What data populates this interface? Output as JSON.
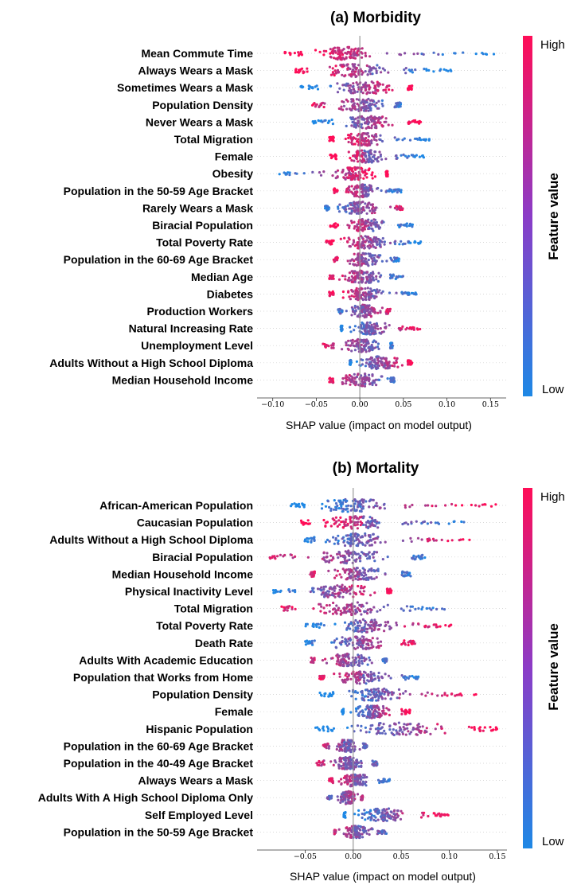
{
  "colors": {
    "low": "#1e88e5",
    "high": "#ff0d57"
  },
  "chart_data": [
    {
      "type": "scatter",
      "title": "(a) Morbidity",
      "xlabel": "SHAP value (impact on model output)",
      "xlim": [
        -0.118,
        0.168
      ],
      "xticks": [
        -0.1,
        -0.05,
        0.0,
        0.05,
        0.1,
        0.15
      ],
      "xtick_labels": [
        "−0.10",
        "−0.05",
        "0.00",
        "0.05",
        "0.10",
        "0.15"
      ],
      "colorbar": {
        "high": "High",
        "low": "Low",
        "label": "Feature value"
      },
      "features": [
        {
          "name": "Mean Commute Time",
          "min": -0.088,
          "max": 0.155,
          "core": [
            -0.065,
            0.03
          ],
          "max_high": 0.07,
          "skew": 0.8
        },
        {
          "name": "Always Wears a Mask",
          "min": -0.075,
          "max": 0.105,
          "core": [
            -0.06,
            0.05
          ],
          "max_high": 0.01,
          "skew": 0.8
        },
        {
          "name": "Sometimes Wears a Mask",
          "min": -0.07,
          "max": 0.06,
          "core": [
            -0.045,
            0.055
          ],
          "max_high": 0.06,
          "skew": -0.8
        },
        {
          "name": "Population Density",
          "min": -0.055,
          "max": 0.047,
          "core": [
            -0.04,
            0.04
          ],
          "max_high": 0.01,
          "skew": 0.5
        },
        {
          "name": "Never Wears a Mask",
          "min": -0.055,
          "max": 0.07,
          "core": [
            -0.03,
            0.05
          ],
          "max_high": 0.07,
          "skew": -0.8
        },
        {
          "name": "Total Migration",
          "min": -0.035,
          "max": 0.083,
          "core": [
            -0.03,
            0.04
          ],
          "max_high": 0.02,
          "skew": 0.8
        },
        {
          "name": "Female",
          "min": -0.035,
          "max": 0.075,
          "core": [
            -0.025,
            0.04
          ],
          "max_high": 0.005,
          "skew": 0.8
        },
        {
          "name": "Obesity",
          "min": -0.103,
          "max": 0.032,
          "core": [
            -0.04,
            0.03
          ],
          "max_high": 0.032,
          "skew": -0.8
        },
        {
          "name": "Population in the 50-59 Age Bracket",
          "min": -0.03,
          "max": 0.048,
          "core": [
            -0.025,
            0.03
          ],
          "max_high": 0.005,
          "skew": 0.6
        },
        {
          "name": "Rarely Wears a Mask",
          "min": -0.04,
          "max": 0.05,
          "core": [
            -0.035,
            0.035
          ],
          "max_high": 0.05,
          "skew": -0.5
        },
        {
          "name": "Biracial Population",
          "min": -0.035,
          "max": 0.067,
          "core": [
            -0.025,
            0.04
          ],
          "max_high": 0.01,
          "skew": 0.7
        },
        {
          "name": "Total Poverty Rate",
          "min": -0.04,
          "max": 0.072,
          "core": [
            -0.03,
            0.04
          ],
          "max_high": 0.072,
          "skew": 0.7
        },
        {
          "name": "Population in the 60-69 Age Bracket",
          "min": -0.03,
          "max": 0.045,
          "core": [
            -0.025,
            0.035
          ],
          "max_high": 0.01,
          "skew": 0.5
        },
        {
          "name": "Median Age",
          "min": -0.035,
          "max": 0.05,
          "core": [
            -0.03,
            0.035
          ],
          "max_high": 0.01,
          "skew": 0.5
        },
        {
          "name": "Diabetes",
          "min": -0.035,
          "max": 0.065,
          "core": [
            -0.03,
            0.04
          ],
          "max_high": 0.01,
          "skew": 0.6
        },
        {
          "name": "Production Workers",
          "min": -0.025,
          "max": 0.035,
          "core": [
            -0.02,
            0.03
          ],
          "max_high": 0.035,
          "skew": -0.4
        },
        {
          "name": "Natural Increasing Rate",
          "min": -0.022,
          "max": 0.07,
          "core": [
            -0.02,
            0.045
          ],
          "max_high": 0.07,
          "skew": -0.7
        },
        {
          "name": "Unemployment Level",
          "min": -0.043,
          "max": 0.038,
          "core": [
            -0.03,
            0.035
          ],
          "max_high": 0.01,
          "skew": 0.5
        },
        {
          "name": "Adults Without a High School Diploma",
          "min": -0.012,
          "max": 0.06,
          "core": [
            -0.01,
            0.055
          ],
          "max_high": 0.06,
          "skew": -0.6
        },
        {
          "name": "Median Household Income",
          "min": -0.035,
          "max": 0.04,
          "core": [
            -0.03,
            0.035
          ],
          "max_high": 0.01,
          "skew": 0.5
        }
      ]
    },
    {
      "type": "scatter",
      "title": "(b) Mortality",
      "xlabel": "SHAP value (impact on model output)",
      "xlim": [
        -0.1,
        0.16
      ],
      "xticks": [
        -0.05,
        0.0,
        0.05,
        0.1,
        0.15
      ],
      "xtick_labels": [
        "−0.05",
        "0.00",
        "0.05",
        "0.10",
        "0.15"
      ],
      "colorbar": {
        "high": "High",
        "low": "Low",
        "label": "Feature value"
      },
      "features": [
        {
          "name": "African-American Population",
          "min": -0.065,
          "max": 0.15,
          "core": [
            -0.05,
            0.05
          ],
          "max_high": 0.15,
          "skew": -0.8
        },
        {
          "name": "Caucasian Population",
          "min": -0.055,
          "max": 0.135,
          "core": [
            -0.045,
            0.05
          ],
          "max_high": 0.01,
          "skew": 0.8
        },
        {
          "name": "Adults Without a High School Diploma",
          "min": -0.055,
          "max": 0.125,
          "core": [
            -0.04,
            0.05
          ],
          "max_high": 0.125,
          "skew": -0.7
        },
        {
          "name": "Biracial Population",
          "min": -0.09,
          "max": 0.075,
          "core": [
            -0.06,
            0.06
          ],
          "max_high": 0.0,
          "skew": 0.5
        },
        {
          "name": "Median Household Income",
          "min": -0.045,
          "max": 0.06,
          "core": [
            -0.04,
            0.05
          ],
          "max_high": 0.01,
          "skew": 0.5
        },
        {
          "name": "Physical Inactivity Level",
          "min": -0.085,
          "max": 0.04,
          "core": [
            -0.06,
            0.035
          ],
          "max_high": 0.04,
          "skew": -0.7
        },
        {
          "name": "Total Migration",
          "min": -0.075,
          "max": 0.095,
          "core": [
            -0.06,
            0.05
          ],
          "max_high": 0.02,
          "skew": 0.5
        },
        {
          "name": "Total Poverty Rate",
          "min": -0.05,
          "max": 0.105,
          "core": [
            -0.03,
            0.06
          ],
          "max_high": 0.105,
          "skew": -0.7
        },
        {
          "name": "Death Rate",
          "min": -0.05,
          "max": 0.065,
          "core": [
            -0.04,
            0.05
          ],
          "max_high": 0.065,
          "skew": -0.6
        },
        {
          "name": "Adults With Academic Education",
          "min": -0.045,
          "max": 0.035,
          "core": [
            -0.04,
            0.03
          ],
          "max_high": 0.005,
          "skew": 0.4
        },
        {
          "name": "Population that Works from Home",
          "min": -0.035,
          "max": 0.07,
          "core": [
            -0.03,
            0.05
          ],
          "max_high": 0.01,
          "skew": 0.6
        },
        {
          "name": "Population Density",
          "min": -0.035,
          "max": 0.13,
          "core": [
            -0.02,
            0.07
          ],
          "max_high": 0.13,
          "skew": -0.8
        },
        {
          "name": "Female",
          "min": -0.012,
          "max": 0.06,
          "core": [
            -0.01,
            0.05
          ],
          "max_high": 0.06,
          "skew": -0.8
        },
        {
          "name": "Hispanic Population",
          "min": -0.04,
          "max": 0.15,
          "core": [
            -0.02,
            0.12
          ],
          "max_high": 0.15,
          "skew": -0.8
        },
        {
          "name": "Population in the 60-69 Age Bracket",
          "min": -0.032,
          "max": 0.015,
          "core": [
            -0.025,
            0.01
          ],
          "max_high": -0.01,
          "skew": 0.3
        },
        {
          "name": "Population in the 40-49 Age Bracket",
          "min": -0.038,
          "max": 0.025,
          "core": [
            -0.03,
            0.02
          ],
          "max_high": -0.01,
          "skew": 0.3
        },
        {
          "name": "Always Wears a Mask",
          "min": -0.025,
          "max": 0.04,
          "core": [
            -0.02,
            0.025
          ],
          "max_high": 0.0,
          "skew": 0.5
        },
        {
          "name": "Adults With A High School Diploma Only",
          "min": -0.028,
          "max": 0.01,
          "core": [
            -0.02,
            0.008
          ],
          "max_high": 0.01,
          "skew": -0.3
        },
        {
          "name": "Self Employed Level",
          "min": -0.01,
          "max": 0.1,
          "core": [
            -0.008,
            0.07
          ],
          "max_high": 0.1,
          "skew": -0.8
        },
        {
          "name": "Population in the 50-59 Age Bracket",
          "min": -0.02,
          "max": 0.035,
          "core": [
            -0.018,
            0.025
          ],
          "max_high": 0.0,
          "skew": 0.3
        }
      ]
    }
  ]
}
